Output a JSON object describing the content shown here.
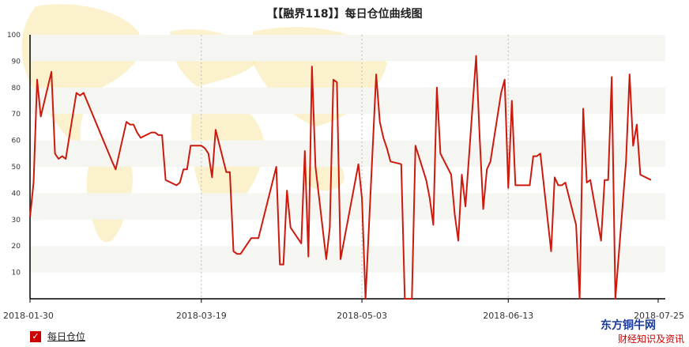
{
  "title": "【【融界118】】每日仓位曲线图",
  "legend": {
    "label": "每日仓位",
    "check": "✓"
  },
  "brand": {
    "name": "东方铜牛网",
    "slogan": "财经知识及资讯"
  },
  "colors": {
    "line": "#cc1a0f",
    "band": "#f5f5f2",
    "axis": "#000000",
    "map": "#faecb8"
  },
  "chart_data": {
    "type": "line",
    "title": "【【融界118】】每日仓位曲线图",
    "xlabel": "",
    "ylabel": "",
    "ylim": [
      0,
      100
    ],
    "yticks": [
      10,
      20,
      30,
      40,
      50,
      60,
      70,
      80,
      90,
      100
    ],
    "xlim": [
      "2018-01-30",
      "2018-07-27"
    ],
    "x_tick_labels": [
      "2018-01-30",
      "2018-03-19",
      "2018-05-03",
      "2018-06-13",
      "2018-07-25"
    ],
    "grid": "vertical dotted at x ticks, alternating horizontal bands",
    "series": [
      {
        "name": "每日仓位",
        "points": [
          [
            "2018-01-30",
            31
          ],
          [
            "2018-01-31",
            44
          ],
          [
            "2018-02-01",
            83
          ],
          [
            "2018-02-02",
            69
          ],
          [
            "2018-02-05",
            86
          ],
          [
            "2018-02-06",
            55
          ],
          [
            "2018-02-07",
            53
          ],
          [
            "2018-02-08",
            54
          ],
          [
            "2018-02-09",
            53
          ],
          [
            "2018-02-12",
            78
          ],
          [
            "2018-02-13",
            77
          ],
          [
            "2018-02-14",
            78
          ],
          [
            "2018-02-22",
            52
          ],
          [
            "2018-02-23",
            49
          ],
          [
            "2018-02-26",
            67
          ],
          [
            "2018-02-27",
            66
          ],
          [
            "2018-02-28",
            66
          ],
          [
            "2018-03-01",
            63
          ],
          [
            "2018-03-02",
            61
          ],
          [
            "2018-03-05",
            63
          ],
          [
            "2018-03-06",
            63
          ],
          [
            "2018-03-07",
            62
          ],
          [
            "2018-03-08",
            62
          ],
          [
            "2018-03-09",
            45
          ],
          [
            "2018-03-12",
            43
          ],
          [
            "2018-03-13",
            44
          ],
          [
            "2018-03-14",
            49
          ],
          [
            "2018-03-15",
            49
          ],
          [
            "2018-03-16",
            58
          ],
          [
            "2018-03-19",
            58
          ],
          [
            "2018-03-20",
            57
          ],
          [
            "2018-03-21",
            55
          ],
          [
            "2018-03-22",
            46
          ],
          [
            "2018-03-23",
            64
          ],
          [
            "2018-03-26",
            48
          ],
          [
            "2018-03-27",
            48
          ],
          [
            "2018-03-28",
            18
          ],
          [
            "2018-03-29",
            17
          ],
          [
            "2018-03-30",
            17
          ],
          [
            "2018-04-02",
            23
          ],
          [
            "2018-04-03",
            23
          ],
          [
            "2018-04-04",
            23
          ],
          [
            "2018-04-09",
            50
          ],
          [
            "2018-04-10",
            13
          ],
          [
            "2018-04-11",
            13
          ],
          [
            "2018-04-12",
            41
          ],
          [
            "2018-04-13",
            27
          ],
          [
            "2018-04-16",
            21
          ],
          [
            "2018-04-17",
            56
          ],
          [
            "2018-04-18",
            16
          ],
          [
            "2018-04-19",
            88
          ],
          [
            "2018-04-20",
            50
          ],
          [
            "2018-04-23",
            15
          ],
          [
            "2018-04-24",
            27
          ],
          [
            "2018-04-25",
            83
          ],
          [
            "2018-04-26",
            82
          ],
          [
            "2018-04-27",
            15
          ],
          [
            "2018-05-02",
            51
          ],
          [
            "2018-05-03",
            38
          ],
          [
            "2018-05-04",
            0
          ],
          [
            "2018-05-07",
            85
          ],
          [
            "2018-05-08",
            67
          ],
          [
            "2018-05-09",
            61
          ],
          [
            "2018-05-10",
            57
          ],
          [
            "2018-05-11",
            52
          ],
          [
            "2018-05-14",
            51
          ],
          [
            "2018-05-15",
            0
          ],
          [
            "2018-05-16",
            0
          ],
          [
            "2018-05-17",
            0
          ],
          [
            "2018-05-18",
            58
          ],
          [
            "2018-05-21",
            45
          ],
          [
            "2018-05-22",
            38
          ],
          [
            "2018-05-23",
            28
          ],
          [
            "2018-05-24",
            80
          ],
          [
            "2018-05-25",
            55
          ],
          [
            "2018-05-28",
            47
          ],
          [
            "2018-05-29",
            32
          ],
          [
            "2018-05-30",
            22
          ],
          [
            "2018-05-31",
            47
          ],
          [
            "2018-06-01",
            35
          ],
          [
            "2018-06-04",
            92
          ],
          [
            "2018-06-05",
            61
          ],
          [
            "2018-06-06",
            34
          ],
          [
            "2018-06-07",
            49
          ],
          [
            "2018-06-08",
            52
          ],
          [
            "2018-06-11",
            78
          ],
          [
            "2018-06-12",
            83
          ],
          [
            "2018-06-13",
            42
          ],
          [
            "2018-06-14",
            75
          ],
          [
            "2018-06-15",
            43
          ],
          [
            "2018-06-19",
            43
          ],
          [
            "2018-06-20",
            54
          ],
          [
            "2018-06-21",
            54
          ],
          [
            "2018-06-22",
            55
          ],
          [
            "2018-06-25",
            18
          ],
          [
            "2018-06-26",
            46
          ],
          [
            "2018-06-27",
            43
          ],
          [
            "2018-06-28",
            43
          ],
          [
            "2018-06-29",
            44
          ],
          [
            "2018-07-02",
            28
          ],
          [
            "2018-07-03",
            0
          ],
          [
            "2018-07-04",
            72
          ],
          [
            "2018-07-05",
            44
          ],
          [
            "2018-07-06",
            45
          ],
          [
            "2018-07-09",
            22
          ],
          [
            "2018-07-10",
            45
          ],
          [
            "2018-07-11",
            45
          ],
          [
            "2018-07-12",
            84
          ],
          [
            "2018-07-13",
            0
          ],
          [
            "2018-07-16",
            52
          ],
          [
            "2018-07-17",
            85
          ],
          [
            "2018-07-18",
            58
          ],
          [
            "2018-07-19",
            66
          ],
          [
            "2018-07-20",
            47
          ],
          [
            "2018-07-23",
            45
          ]
        ]
      }
    ]
  }
}
